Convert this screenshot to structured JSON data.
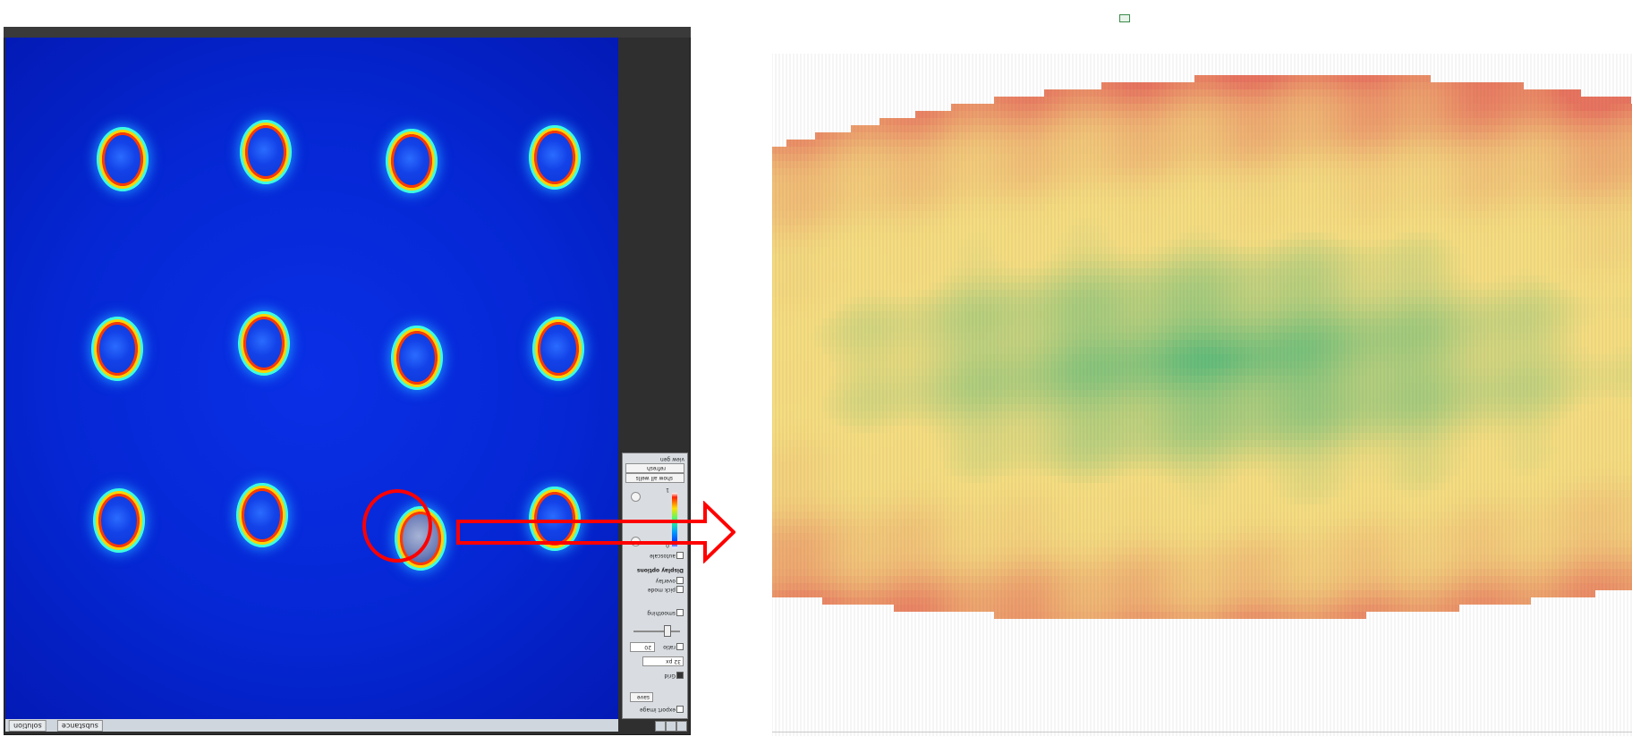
{
  "viewer": {
    "tabs": [
      {
        "label": "solution"
      },
      {
        "label": "substance"
      }
    ],
    "wells": [
      {
        "row": 1,
        "col": 1
      },
      {
        "row": 1,
        "col": 2
      },
      {
        "row": 1,
        "col": 3
      },
      {
        "row": 1,
        "col": 4
      },
      {
        "row": 2,
        "col": 1
      },
      {
        "row": 2,
        "col": 2
      },
      {
        "row": 2,
        "col": 3
      },
      {
        "row": 2,
        "col": 4
      },
      {
        "row": 3,
        "col": 1
      },
      {
        "row": 3,
        "col": 2
      },
      {
        "row": 3,
        "col": 3,
        "selected": true
      },
      {
        "row": 3,
        "col": 4
      }
    ],
    "colors": {
      "background": "#0527d4",
      "ring": "#ff3a00",
      "halo": "#3dffe0",
      "highlight": "#ff0000"
    }
  },
  "control_panel": {
    "title": "view gen",
    "items": [
      {
        "type": "button",
        "label": "refresh"
      },
      {
        "type": "button",
        "label": "show all wells"
      },
      {
        "type": "colorbar",
        "max": "1",
        "min": "0"
      },
      {
        "type": "checkbox",
        "label": "autoscale",
        "checked": false
      },
      {
        "type": "section",
        "label": "Display options"
      },
      {
        "type": "checkbox",
        "label": "overlay",
        "checked": false
      },
      {
        "type": "checkbox",
        "label": "pick mode",
        "checked": false
      },
      {
        "type": "checkbox",
        "label": "smoothing",
        "checked": false
      },
      {
        "type": "slider",
        "label": "",
        "level": 0.2
      },
      {
        "type": "checkbox",
        "label": "ratio",
        "checked": false
      },
      {
        "type": "input",
        "label": "",
        "value": "20"
      },
      {
        "type": "select",
        "label": "",
        "value": "32 px"
      },
      {
        "type": "checkbox",
        "label": "Grid",
        "checked": true
      },
      {
        "type": "button",
        "label": "save"
      },
      {
        "type": "checkbox",
        "label": "export image",
        "checked": false
      }
    ]
  },
  "heatmap": {
    "colors": {
      "edge": "#e8735e",
      "mid": "#f5dd80",
      "center": "#6fbf7a"
    },
    "description_marker": "grid of per-pixel values (too small to read)"
  }
}
